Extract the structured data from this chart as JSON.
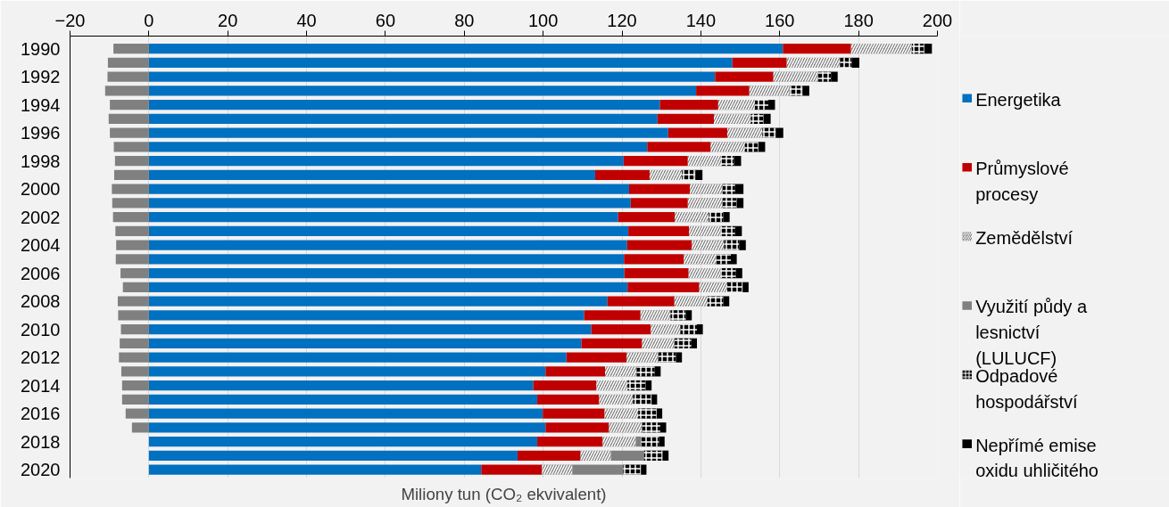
{
  "chart_data": {
    "type": "bar",
    "orientation": "horizontal",
    "stacked": true,
    "xlabel": "Miliony tun (CO₂ ekvivalent)",
    "categories": [
      "1990",
      null,
      "1992",
      null,
      "1994",
      null,
      "1996",
      null,
      "1998",
      null,
      "2000",
      null,
      "2002",
      null,
      "2004",
      null,
      "2006",
      null,
      "2008",
      null,
      "2010",
      null,
      "2012",
      null,
      "2014",
      null,
      "2016",
      null,
      "2018",
      null,
      "2020"
    ],
    "series": [
      {
        "name": "Energetika",
        "color": "#0070c0",
        "values": [
          160.8,
          148.0,
          143.6,
          138.8,
          129.6,
          129.0,
          131.7,
          126.4,
          120.4,
          113.2,
          121.8,
          122.2,
          119.0,
          121.6,
          121.3,
          120.5,
          120.6,
          121.4,
          116.3,
          110.4,
          112.2,
          109.7,
          105.9,
          100.6,
          97.5,
          98.5,
          99.9,
          100.6,
          98.5,
          93.5,
          84.3
        ]
      },
      {
        "name": "Průmyslové procesy",
        "color": "#c00000",
        "values": [
          17.3,
          13.8,
          14.8,
          13.5,
          14.8,
          14.3,
          15.0,
          16.1,
          16.3,
          13.8,
          15.4,
          14.5,
          14.4,
          15.4,
          16.4,
          15.2,
          16.3,
          18.2,
          17.0,
          14.3,
          15.1,
          15.4,
          15.3,
          15.1,
          16.0,
          15.7,
          15.7,
          16.1,
          16.6,
          16.0,
          15.4
        ]
      },
      {
        "name": "Zemědělství",
        "color": "#808080",
        "values": [
          15.4,
          13.5,
          11.3,
          10.2,
          9.3,
          9.4,
          8.9,
          8.7,
          8.4,
          8.2,
          8.3,
          8.8,
          8.6,
          7.9,
          8.2,
          8.1,
          8.0,
          7.1,
          8.4,
          7.6,
          7.5,
          8.2,
          8.0,
          8.0,
          7.9,
          8.6,
          8.5,
          8.4,
          8.4,
          7.7,
          7.7
        ]
      },
      {
        "name": "Využití půdy a lesnictví (LULUCF)",
        "color": "#808080",
        "values": [
          -9.0,
          -10.4,
          -10.5,
          -11.1,
          -9.9,
          -10.2,
          -9.9,
          -8.9,
          -8.6,
          -8.8,
          -9.4,
          -9.3,
          -9.1,
          -8.5,
          -8.3,
          -8.4,
          -7.2,
          -6.6,
          -7.9,
          -7.8,
          -7.1,
          -7.4,
          -7.6,
          -7.0,
          -6.8,
          -6.8,
          -5.9,
          -4.3,
          1.3,
          8.4,
          12.9
        ]
      },
      {
        "name": "Odpadové hospodářství",
        "color": "#000000",
        "values": [
          3.2,
          3.0,
          3.3,
          3.3,
          3.4,
          3.2,
          3.4,
          3.4,
          3.3,
          3.4,
          3.2,
          3.6,
          3.7,
          3.8,
          3.8,
          3.8,
          4.0,
          3.9,
          4.0,
          3.9,
          4.2,
          4.3,
          4.5,
          4.6,
          4.6,
          4.7,
          4.7,
          4.6,
          4.6,
          4.7,
          4.5
        ]
      },
      {
        "name": "Nepřímé emise oxidu uhličitého",
        "color": "#000000",
        "values": [
          1.9,
          1.9,
          1.7,
          1.7,
          1.7,
          1.8,
          1.9,
          1.7,
          1.8,
          1.8,
          2.1,
          1.7,
          1.6,
          1.7,
          1.7,
          1.5,
          1.6,
          1.5,
          1.5,
          1.5,
          1.5,
          1.4,
          1.5,
          1.5,
          1.5,
          1.4,
          1.4,
          1.5,
          1.4,
          1.5,
          1.4
        ]
      }
    ],
    "xlim": [
      -20,
      200
    ],
    "xticks": [
      -20,
      0,
      20,
      40,
      60,
      80,
      100,
      120,
      140,
      160,
      180,
      200
    ],
    "grid": "x",
    "legend": "right"
  }
}
